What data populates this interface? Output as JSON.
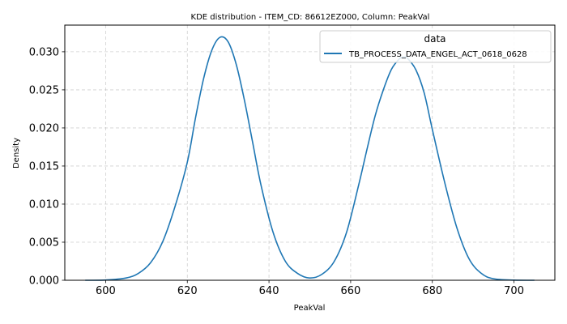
{
  "chart_data": {
    "type": "line",
    "title": "KDE distribution - ITEM_CD: 86612EZ000, Column: PeakVal",
    "xlabel": "PeakVal",
    "ylabel": "Density",
    "xlim": [
      590,
      710
    ],
    "ylim": [
      0,
      0.0335
    ],
    "x_ticks": [
      600,
      620,
      640,
      660,
      680,
      700
    ],
    "y_ticks": [
      0.0,
      0.005,
      0.01,
      0.015,
      0.02,
      0.025,
      0.03
    ],
    "x_tick_labels": [
      "600",
      "620",
      "640",
      "660",
      "680",
      "700"
    ],
    "y_tick_labels": [
      "0.000",
      "0.005",
      "0.010",
      "0.015",
      "0.020",
      "0.025",
      "0.030"
    ],
    "grid": true,
    "legend": {
      "title": "data",
      "placement": "top-right"
    },
    "series": [
      {
        "name": "TB_PROCESS_DATA_ENGEL_ACT_0618_0628",
        "color": "#1f77b4",
        "x": [
          595,
          600,
          605,
          608,
          611,
          614,
          617,
          620,
          622,
          624,
          626,
          628,
          630,
          632,
          634,
          636,
          638,
          641,
          644,
          647,
          650,
          653,
          656,
          659,
          662,
          664,
          666,
          668,
          670,
          672,
          673,
          674,
          676,
          678,
          680,
          683,
          686,
          689,
          692,
          695,
          700,
          705
        ],
        "y": [
          0.0,
          3e-05,
          0.0003,
          0.0009,
          0.0023,
          0.0051,
          0.0097,
          0.0155,
          0.0213,
          0.0265,
          0.0302,
          0.0319,
          0.0313,
          0.0283,
          0.0236,
          0.0181,
          0.0126,
          0.0063,
          0.0025,
          0.0009,
          0.0003,
          0.0008,
          0.0025,
          0.0063,
          0.0126,
          0.0172,
          0.0216,
          0.025,
          0.0277,
          0.0291,
          0.0293,
          0.0291,
          0.0276,
          0.0246,
          0.0198,
          0.0129,
          0.0069,
          0.0028,
          0.0009,
          0.0002,
          2e-05,
          0.0
        ]
      }
    ]
  }
}
